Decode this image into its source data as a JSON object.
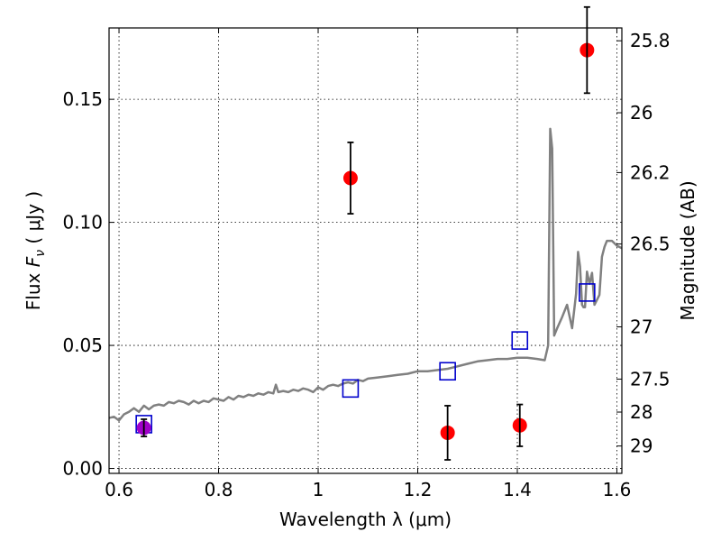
{
  "chart_data": {
    "type": "scatter",
    "xlabel": "Wavelength  λ (μm)",
    "ylabel": "Flux  F_ν  ( μJy )",
    "ylabel_right": "Magnitude (AB)",
    "xlim": [
      0.58,
      1.61
    ],
    "ylim": [
      -0.002,
      0.179
    ],
    "grid": true,
    "x_ticks": [
      {
        "value": 0.6,
        "label": "0.6"
      },
      {
        "value": 0.8,
        "label": "0.8"
      },
      {
        "value": 1.0,
        "label": "1"
      },
      {
        "value": 1.2,
        "label": "1.2"
      },
      {
        "value": 1.4,
        "label": "1.4"
      },
      {
        "value": 1.6,
        "label": "1.6"
      }
    ],
    "y_ticks": [
      {
        "value": 0.0,
        "label": "0.00"
      },
      {
        "value": 0.05,
        "label": "0.05"
      },
      {
        "value": 0.1,
        "label": "0.10"
      },
      {
        "value": 0.15,
        "label": "0.15"
      }
    ],
    "magnitude_ticks": [
      {
        "mag": 25.8,
        "label": "25.8"
      },
      {
        "mag": 26.0,
        "label": "26"
      },
      {
        "mag": 26.2,
        "label": "26.2"
      },
      {
        "mag": 26.5,
        "label": "26.5"
      },
      {
        "mag": 27.0,
        "label": "27"
      },
      {
        "mag": 27.5,
        "label": "27.5"
      },
      {
        "mag": 28.0,
        "label": "28"
      },
      {
        "mag": 29.0,
        "label": "29"
      }
    ],
    "colors": {
      "observed": "#ff0000",
      "observed_alt": "#a000c8",
      "model": "#0000cc",
      "sed": "#808080",
      "errorbar": "#000000"
    },
    "series": [
      {
        "kind": "observed",
        "points": [
          {
            "x": 0.65,
            "y": 0.0165,
            "yerr": 0.0035,
            "color": "#a000c8"
          },
          {
            "x": 1.065,
            "y": 0.118,
            "yerr": 0.0145
          },
          {
            "x": 1.26,
            "y": 0.0145,
            "yerr": 0.011
          },
          {
            "x": 1.405,
            "y": 0.0175,
            "yerr": 0.0085
          },
          {
            "x": 1.54,
            "y": 0.17,
            "yerr": 0.0175
          }
        ]
      },
      {
        "kind": "model",
        "points": [
          {
            "x": 0.65,
            "y": 0.018
          },
          {
            "x": 1.065,
            "y": 0.0325
          },
          {
            "x": 1.26,
            "y": 0.0395
          },
          {
            "x": 1.405,
            "y": 0.052
          },
          {
            "x": 1.54,
            "y": 0.0715
          }
        ]
      },
      {
        "kind": "sed",
        "x": [
          0.58,
          0.59,
          0.6,
          0.61,
          0.62,
          0.63,
          0.64,
          0.65,
          0.66,
          0.67,
          0.68,
          0.69,
          0.7,
          0.71,
          0.72,
          0.73,
          0.74,
          0.75,
          0.76,
          0.77,
          0.78,
          0.79,
          0.8,
          0.81,
          0.82,
          0.83,
          0.84,
          0.85,
          0.86,
          0.87,
          0.88,
          0.89,
          0.9,
          0.91,
          0.915,
          0.92,
          0.93,
          0.94,
          0.95,
          0.96,
          0.97,
          0.98,
          0.99,
          1.0,
          1.01,
          1.02,
          1.03,
          1.04,
          1.05,
          1.06,
          1.07,
          1.08,
          1.09,
          1.1,
          1.12,
          1.14,
          1.16,
          1.18,
          1.2,
          1.22,
          1.24,
          1.26,
          1.28,
          1.3,
          1.32,
          1.34,
          1.36,
          1.38,
          1.4,
          1.42,
          1.44,
          1.455,
          1.462,
          1.466,
          1.47,
          1.474,
          1.48,
          1.49,
          1.5,
          1.51,
          1.518,
          1.522,
          1.526,
          1.53,
          1.533,
          1.536,
          1.54,
          1.545,
          1.55,
          1.555,
          1.56,
          1.565,
          1.57,
          1.575,
          1.58,
          1.59,
          1.6,
          1.61
        ],
        "y": [
          0.0205,
          0.021,
          0.0195,
          0.022,
          0.023,
          0.0245,
          0.023,
          0.0255,
          0.024,
          0.0255,
          0.026,
          0.0255,
          0.027,
          0.0265,
          0.0275,
          0.027,
          0.026,
          0.0275,
          0.0265,
          0.0275,
          0.027,
          0.0285,
          0.028,
          0.0275,
          0.029,
          0.028,
          0.0295,
          0.029,
          0.03,
          0.0295,
          0.0305,
          0.03,
          0.031,
          0.0305,
          0.034,
          0.031,
          0.0315,
          0.031,
          0.032,
          0.0315,
          0.0325,
          0.032,
          0.031,
          0.033,
          0.032,
          0.0335,
          0.034,
          0.0335,
          0.0345,
          0.035,
          0.0345,
          0.036,
          0.0355,
          0.0365,
          0.037,
          0.0375,
          0.038,
          0.0385,
          0.0395,
          0.0395,
          0.04,
          0.0405,
          0.0415,
          0.0425,
          0.0435,
          0.044,
          0.0445,
          0.0445,
          0.045,
          0.045,
          0.0445,
          0.044,
          0.05,
          0.138,
          0.13,
          0.054,
          0.057,
          0.0615,
          0.0665,
          0.057,
          0.071,
          0.088,
          0.082,
          0.0665,
          0.0655,
          0.0655,
          0.08,
          0.075,
          0.0795,
          0.0665,
          0.0685,
          0.0705,
          0.086,
          0.09,
          0.0925,
          0.0925,
          0.0905,
          0.0895
        ]
      }
    ]
  }
}
